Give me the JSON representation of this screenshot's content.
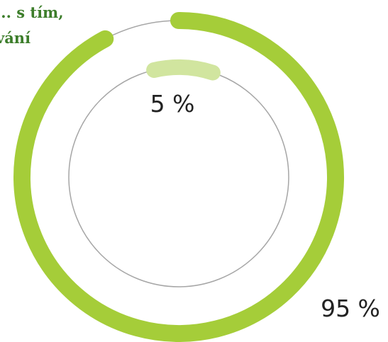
{
  "heading": {
    "line1": "... s tím,",
    "line2": "vání",
    "color": "#3c7d2a"
  },
  "chart_data": {
    "type": "pie",
    "variant": "concentric-ring",
    "series": [
      {
        "ring": "outer",
        "label": "95 %",
        "value": 95,
        "color": "#a5cd39"
      },
      {
        "ring": "inner",
        "label": "5 %",
        "value": 5,
        "color": "#d1e59f"
      }
    ],
    "track_color": "#a6a6a6"
  }
}
